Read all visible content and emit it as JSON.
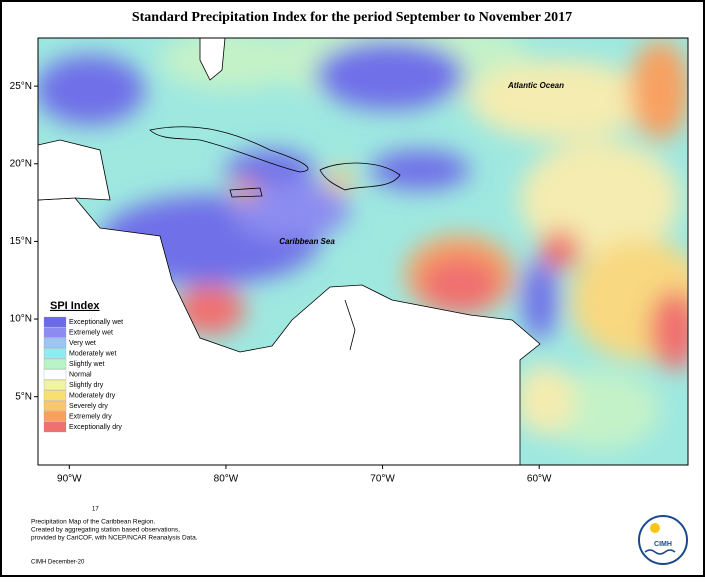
{
  "title": "Standard Precipitation Index for the period September to November 2017",
  "map": {
    "lon_range": [
      -92,
      -50.5
    ],
    "lat_range": [
      0.6,
      28.1
    ],
    "lat_ticks": [
      {
        "value": 25,
        "label": "25°N"
      },
      {
        "value": 20,
        "label": "20°N"
      },
      {
        "value": 15,
        "label": "15°N"
      },
      {
        "value": 10,
        "label": "10°N"
      },
      {
        "value": 5,
        "label": "5°N"
      }
    ],
    "lon_ticks": [
      {
        "value": -90,
        "label": "90°W"
      },
      {
        "value": -80,
        "label": "80°W"
      },
      {
        "value": -70,
        "label": "70°W"
      },
      {
        "value": -60,
        "label": "60°W"
      }
    ],
    "labels": [
      "Atlantic Ocean",
      "Caribbean Sea"
    ]
  },
  "legend": {
    "title": "SPI Index",
    "entries": [
      {
        "name": "Exceptionally wet",
        "color": "#6a6ae8"
      },
      {
        "name": "Extremely wet",
        "color": "#8c8cf0"
      },
      {
        "name": "Very wet",
        "color": "#9cc4f4"
      },
      {
        "name": "Moderately wet",
        "color": "#8eecf0"
      },
      {
        "name": "Slightly wet",
        "color": "#b8f4c8"
      },
      {
        "name": "Normal",
        "color": "#ffffff"
      },
      {
        "name": "Slightly dry",
        "color": "#f0f4a0"
      },
      {
        "name": "Moderately dry",
        "color": "#f8e070"
      },
      {
        "name": "Severely dry",
        "color": "#f8c870"
      },
      {
        "name": "Extremely dry",
        "color": "#f8a060"
      },
      {
        "name": "Exceptionally dry",
        "color": "#f07070"
      }
    ]
  },
  "footer": {
    "number": "17",
    "lines": [
      "Precipitation Map of the Caribbean Region.",
      "Created by aggregating station based observations,",
      "provided by CariCOF, with NCEP/NCAR Reanalysis Data."
    ],
    "credit": "CIMH December-20",
    "logo": "CIMH"
  }
}
